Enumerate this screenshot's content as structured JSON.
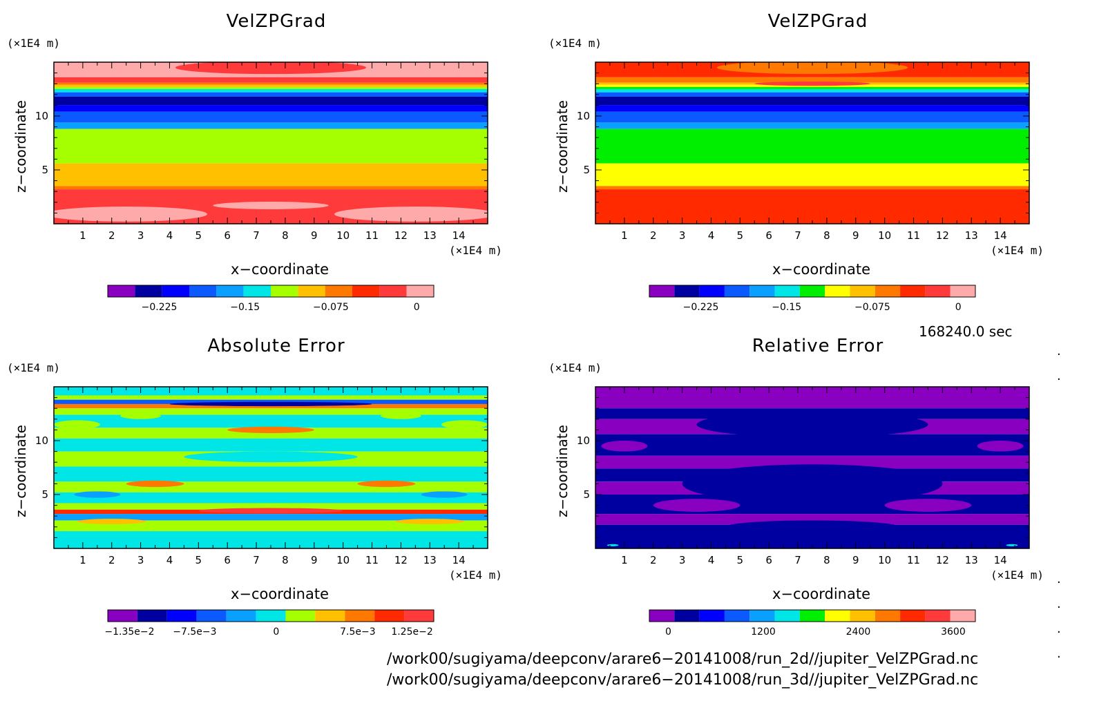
{
  "chart_data": [
    {
      "type": "heatmap",
      "title": "VelZPGrad",
      "xlabel": "x−coordinate",
      "ylabel": "z−coordinate",
      "x_unit": "(×1E4 m)",
      "y_unit": "(×1E4 m)",
      "xlim": [
        0,
        15
      ],
      "ylim": [
        0,
        15
      ],
      "x_ticks": [
        1,
        2,
        3,
        4,
        5,
        6,
        7,
        8,
        9,
        10,
        11,
        12,
        13,
        14
      ],
      "y_ticks": [
        5,
        10
      ],
      "colorbar": {
        "colors": [
          "#8a00c0",
          "#0000a0",
          "#0000ff",
          "#0a5aff",
          "#0aa0ff",
          "#00e6e6",
          "#a6ff00",
          "#ffc000",
          "#ff7800",
          "#ff2a00",
          "#ff3a3a",
          "#ffaaaa"
        ],
        "tick_values": [
          -0.225,
          -0.15,
          -0.075,
          0
        ],
        "tick_labels": [
          "−0.225",
          "−0.15",
          "−0.075",
          "0"
        ],
        "range": [
          -0.27,
          0.015
        ]
      }
    },
    {
      "type": "heatmap",
      "title": "VelZPGrad",
      "xlabel": "x−coordinate",
      "ylabel": "z−coordinate",
      "x_unit": "(×1E4 m)",
      "y_unit": "(×1E4 m)",
      "xlim": [
        0,
        15
      ],
      "ylim": [
        0,
        15
      ],
      "x_ticks": [
        1,
        2,
        3,
        4,
        5,
        6,
        7,
        8,
        9,
        10,
        11,
        12,
        13,
        14
      ],
      "y_ticks": [
        5,
        10
      ],
      "colorbar": {
        "colors": [
          "#8a00c0",
          "#0000a0",
          "#0000ff",
          "#0a5aff",
          "#0aa0ff",
          "#00e6e6",
          "#00ee00",
          "#ffff00",
          "#ffc000",
          "#ff7800",
          "#ff2a00",
          "#ff3a3a",
          "#ffaaaa"
        ],
        "tick_values": [
          -0.225,
          -0.15,
          -0.075,
          0
        ],
        "tick_labels": [
          "−0.225",
          "−0.15",
          "−0.075",
          "0"
        ],
        "range": [
          -0.27,
          0.015
        ]
      }
    },
    {
      "type": "heatmap",
      "title": "Absolute Error",
      "xlabel": "x−coordinate",
      "ylabel": "z−coordinate",
      "x_unit": "(×1E4 m)",
      "y_unit": "(×1E4 m)",
      "xlim": [
        0,
        15
      ],
      "ylim": [
        0,
        15
      ],
      "x_ticks": [
        1,
        2,
        3,
        4,
        5,
        6,
        7,
        8,
        9,
        10,
        11,
        12,
        13,
        14
      ],
      "y_ticks": [
        5,
        10
      ],
      "colorbar": {
        "colors": [
          "#8a00c0",
          "#0000a0",
          "#0000ff",
          "#0a5aff",
          "#0aa0ff",
          "#00e6e6",
          "#a6ff00",
          "#ffc000",
          "#ff7800",
          "#ff2a00",
          "#ff3a3a"
        ],
        "tick_values": [
          -0.0135,
          -0.0075,
          0,
          0.0075,
          0.0125
        ],
        "tick_labels": [
          "−1.35e−2",
          "−7.5e−3",
          "0",
          "7.5e−3",
          "1.25e−2"
        ],
        "range": [
          -0.0155,
          0.0145
        ]
      }
    },
    {
      "type": "heatmap",
      "title": "Relative Error",
      "xlabel": "x−coordinate",
      "ylabel": "z−coordinate",
      "x_unit": "(×1E4 m)",
      "y_unit": "(×1E4 m)",
      "xlim": [
        0,
        15
      ],
      "ylim": [
        0,
        15
      ],
      "x_ticks": [
        1,
        2,
        3,
        4,
        5,
        6,
        7,
        8,
        9,
        10,
        11,
        12,
        13,
        14
      ],
      "y_ticks": [
        5,
        10
      ],
      "colorbar": {
        "colors": [
          "#8a00c0",
          "#0000a0",
          "#0000ff",
          "#0a5aff",
          "#0aa0ff",
          "#00e6e6",
          "#00ee00",
          "#ffff00",
          "#ffc000",
          "#ff7800",
          "#ff2a00",
          "#ff3a3a",
          "#ffaaaa"
        ],
        "tick_values": [
          0,
          1200,
          2400,
          3600
        ],
        "tick_labels": [
          "0",
          "1200",
          "2400",
          "3600"
        ],
        "range": [
          -240,
          3880
        ]
      }
    }
  ],
  "time_label": "168240.0 sec",
  "file_paths": [
    "/work00/sugiyama/deepconv/arare6−20141008/run_2d//jupiter_VelZPGrad.nc",
    "/work00/sugiyama/deepconv/arare6−20141008/run_3d//jupiter_VelZPGrad.nc"
  ]
}
